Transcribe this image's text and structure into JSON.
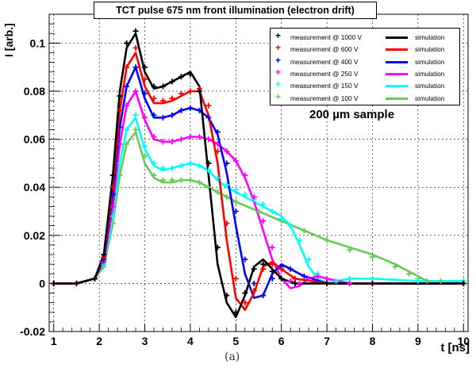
{
  "chart_data": {
    "type": "line",
    "title": "TCT pulse 675 nm front illumination (electron drift)",
    "xlabel": "t [ns]",
    "ylabel": "I [arb.]",
    "xlim": [
      0.9,
      10.1
    ],
    "ylim": [
      -0.02,
      0.112
    ],
    "xticks": [
      1,
      2,
      3,
      4,
      5,
      6,
      7,
      8,
      9,
      10
    ],
    "yticks": [
      -0.02,
      0,
      0.02,
      0.04,
      0.06,
      0.08,
      0.1
    ],
    "ytick_labels": [
      "-0.02",
      "0",
      "0.02",
      "0.04",
      "0.06",
      "0.08",
      "0.1"
    ],
    "grid": true,
    "legend_position": "top-right",
    "annotation": "200 µm sample",
    "caption": "(a)",
    "series": [
      {
        "name": "1000 V",
        "color": "#000000",
        "measurement_label": "measurement @ 1000 V",
        "simulation_label": "simulation",
        "x": [
          1,
          1.5,
          1.9,
          2.1,
          2.3,
          2.45,
          2.6,
          2.8,
          3.0,
          3.2,
          3.4,
          3.6,
          3.8,
          4.0,
          4.2,
          4.4,
          4.6,
          4.8,
          5.0,
          5.2,
          5.4,
          5.6,
          5.8,
          6.0,
          6.3,
          7,
          8,
          10
        ],
        "measured": [
          0,
          0,
          0.002,
          0.012,
          0.045,
          0.078,
          0.1,
          0.105,
          0.09,
          0.082,
          0.082,
          0.084,
          0.086,
          0.087,
          0.08,
          0.05,
          0.015,
          -0.005,
          -0.012,
          -0.004,
          0.006,
          0.008,
          0.005,
          0.002,
          0,
          0,
          0,
          0
        ],
        "simulation": [
          0,
          0,
          0.002,
          0.012,
          0.045,
          0.08,
          0.098,
          0.104,
          0.088,
          0.081,
          0.082,
          0.084,
          0.086,
          0.088,
          0.082,
          0.045,
          0.008,
          -0.008,
          -0.014,
          -0.005,
          0.007,
          0.01,
          0.006,
          0.002,
          0,
          0,
          0,
          0
        ]
      },
      {
        "name": "600 V",
        "color": "#ff0000",
        "measurement_label": "measurement @ 600 V",
        "simulation_label": "simulation",
        "x": [
          1,
          1.5,
          1.9,
          2.1,
          2.3,
          2.45,
          2.6,
          2.8,
          3.0,
          3.2,
          3.4,
          3.6,
          3.8,
          4.0,
          4.2,
          4.4,
          4.6,
          4.8,
          5.0,
          5.2,
          5.4,
          5.6,
          5.8,
          6.0,
          6.3,
          7,
          8,
          10
        ],
        "measured": [
          0,
          0,
          0.002,
          0.011,
          0.04,
          0.072,
          0.09,
          0.098,
          0.085,
          0.077,
          0.076,
          0.077,
          0.079,
          0.08,
          0.081,
          0.074,
          0.055,
          0.025,
          0.002,
          -0.008,
          -0.003,
          0.006,
          0.008,
          0.006,
          0.002,
          0,
          0,
          0
        ],
        "simulation": [
          0,
          0,
          0.002,
          0.011,
          0.04,
          0.072,
          0.09,
          0.096,
          0.082,
          0.075,
          0.075,
          0.076,
          0.078,
          0.08,
          0.08,
          0.07,
          0.05,
          0.018,
          -0.006,
          -0.011,
          -0.004,
          0.007,
          0.009,
          0.006,
          0.002,
          0,
          0,
          0
        ]
      },
      {
        "name": "400 V",
        "color": "#0000ff",
        "measurement_label": "measurement @ 400 V",
        "simulation_label": "simulation",
        "x": [
          1,
          1.5,
          1.9,
          2.1,
          2.3,
          2.45,
          2.6,
          2.8,
          3.0,
          3.2,
          3.4,
          3.6,
          3.8,
          4.0,
          4.2,
          4.4,
          4.6,
          4.8,
          5.0,
          5.2,
          5.4,
          5.6,
          5.8,
          6.0,
          6.2,
          6.5,
          7,
          8,
          10
        ],
        "measured": [
          0,
          0,
          0.002,
          0.01,
          0.037,
          0.065,
          0.082,
          0.09,
          0.079,
          0.07,
          0.069,
          0.07,
          0.072,
          0.073,
          0.072,
          0.069,
          0.063,
          0.05,
          0.03,
          0.01,
          0,
          -0.005,
          0.002,
          0.007,
          0.006,
          0.003,
          0,
          0,
          0
        ],
        "simulation": [
          0,
          0,
          0.002,
          0.01,
          0.037,
          0.065,
          0.082,
          0.09,
          0.077,
          0.069,
          0.069,
          0.07,
          0.072,
          0.073,
          0.072,
          0.069,
          0.062,
          0.046,
          0.024,
          0.004,
          -0.006,
          -0.005,
          0.004,
          0.008,
          0.006,
          0.003,
          0,
          0,
          0
        ]
      },
      {
        "name": "250 V",
        "color": "#ff00ff",
        "measurement_label": "measurement @ 250 V",
        "simulation_label": "simulation",
        "x": [
          1,
          1.5,
          1.9,
          2.1,
          2.3,
          2.45,
          2.6,
          2.8,
          3.0,
          3.2,
          3.4,
          3.6,
          3.8,
          4.0,
          4.2,
          4.4,
          4.6,
          4.8,
          5.0,
          5.2,
          5.4,
          5.6,
          5.8,
          6.0,
          6.2,
          6.4,
          6.6,
          6.8,
          7.0,
          7.5,
          8,
          10
        ],
        "measured": [
          0,
          0,
          0.002,
          0.009,
          0.032,
          0.058,
          0.074,
          0.08,
          0.069,
          0.061,
          0.059,
          0.059,
          0.06,
          0.061,
          0.061,
          0.06,
          0.058,
          0.055,
          0.051,
          0.045,
          0.036,
          0.026,
          0.015,
          0.006,
          0.001,
          0,
          0.002,
          0.003,
          0.002,
          0,
          0,
          0
        ],
        "simulation": [
          0,
          0,
          0.002,
          0.009,
          0.032,
          0.058,
          0.074,
          0.08,
          0.068,
          0.06,
          0.059,
          0.059,
          0.06,
          0.061,
          0.061,
          0.06,
          0.058,
          0.055,
          0.051,
          0.044,
          0.034,
          0.022,
          0.01,
          0.002,
          -0.002,
          -0.001,
          0.002,
          0.003,
          0.002,
          0,
          0,
          0
        ]
      },
      {
        "name": "150 V",
        "color": "#00ffff",
        "measurement_label": "measurement @ 150 V",
        "simulation_label": "simulation",
        "x": [
          1,
          1.5,
          1.9,
          2.1,
          2.3,
          2.45,
          2.6,
          2.8,
          3.0,
          3.2,
          3.4,
          3.6,
          3.8,
          4.0,
          4.2,
          4.4,
          4.6,
          4.8,
          5.0,
          5.2,
          5.4,
          5.6,
          5.8,
          6.0,
          6.2,
          6.4,
          6.6,
          6.8,
          7.0,
          7.2,
          7.5,
          8,
          9,
          10
        ],
        "measured": [
          0,
          0,
          0.002,
          0.008,
          0.028,
          0.05,
          0.064,
          0.07,
          0.057,
          0.05,
          0.048,
          0.048,
          0.049,
          0.05,
          0.049,
          0.047,
          0.044,
          0.041,
          0.039,
          0.037,
          0.035,
          0.033,
          0.03,
          0.027,
          0.024,
          0.018,
          0.01,
          0.004,
          0.001,
          0.001,
          0.002,
          0.002,
          0.001,
          0.001
        ],
        "simulation": [
          0,
          0,
          0.002,
          0.008,
          0.028,
          0.05,
          0.064,
          0.069,
          0.056,
          0.049,
          0.047,
          0.048,
          0.049,
          0.05,
          0.049,
          0.047,
          0.043,
          0.04,
          0.038,
          0.036,
          0.034,
          0.032,
          0.03,
          0.028,
          0.024,
          0.016,
          0.007,
          0.002,
          0,
          0.001,
          0.002,
          0.002,
          0.001,
          0.001
        ]
      },
      {
        "name": "100 V",
        "color": "#66cc55",
        "measurement_label": "measurement @ 100 V",
        "simulation_label": "simulation",
        "x": [
          1,
          1.5,
          1.9,
          2.1,
          2.3,
          2.45,
          2.6,
          2.8,
          3.0,
          3.2,
          3.4,
          3.6,
          3.8,
          4.0,
          4.2,
          4.4,
          4.6,
          4.8,
          5.0,
          5.5,
          6.0,
          6.5,
          7.0,
          7.5,
          8.0,
          8.5,
          8.8,
          9.0,
          9.2,
          9.5,
          10
        ],
        "measured": [
          0,
          0,
          0.002,
          0.007,
          0.025,
          0.045,
          0.058,
          0.064,
          0.053,
          0.045,
          0.043,
          0.043,
          0.043,
          0.043,
          0.042,
          0.04,
          0.038,
          0.036,
          0.034,
          0.03,
          0.026,
          0.022,
          0.018,
          0.014,
          0.011,
          0.007,
          0.004,
          0.002,
          0.001,
          0.001,
          0.001
        ],
        "simulation": [
          0,
          0,
          0.002,
          0.007,
          0.025,
          0.045,
          0.058,
          0.063,
          0.05,
          0.044,
          0.042,
          0.042,
          0.043,
          0.043,
          0.042,
          0.04,
          0.038,
          0.036,
          0.034,
          0.03,
          0.026,
          0.022,
          0.018,
          0.015,
          0.012,
          0.008,
          0.005,
          0.003,
          0.001,
          0.001,
          0.001
        ]
      }
    ]
  }
}
